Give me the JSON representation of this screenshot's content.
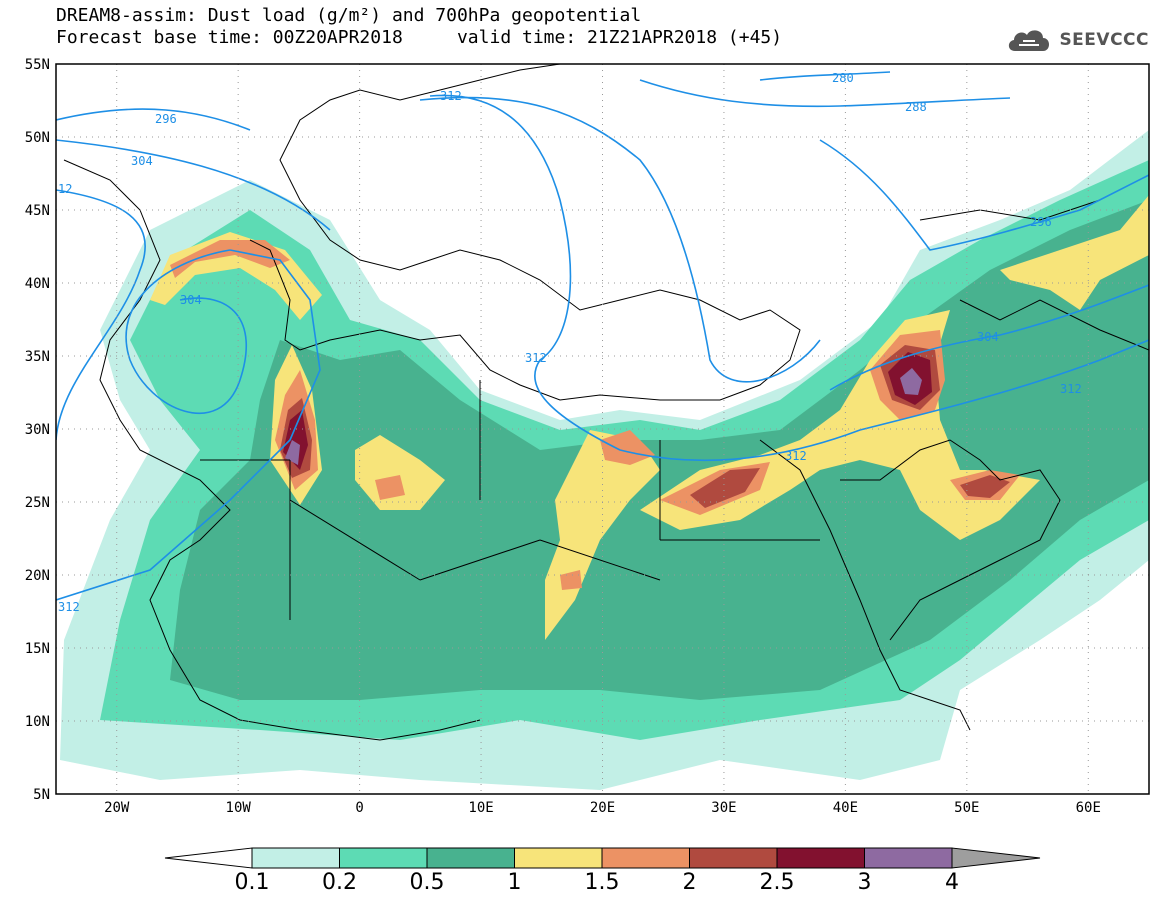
{
  "title": {
    "line1": "DREAM8-assim: Dust load (g/m²) and 700hPa geopotential",
    "line2": "Forecast base time: 00Z20APR2018     valid time: 21Z21APR2018 (+45)"
  },
  "logo": {
    "text": "SEEVCCC",
    "icon": "cloud-icon"
  },
  "map": {
    "lat_range": [
      5,
      55
    ],
    "lon_range": [
      -25,
      65
    ],
    "lat_ticks": [
      "5N",
      "10N",
      "15N",
      "20N",
      "25N",
      "30N",
      "35N",
      "40N",
      "45N",
      "50N",
      "55N"
    ],
    "lon_ticks": [
      "20W",
      "10W",
      "0",
      "10E",
      "20E",
      "30E",
      "40E",
      "50E",
      "60E"
    ],
    "grid": "dotted",
    "contour_color": "#1e8fe6",
    "contour_labels": [
      "280",
      "288",
      "296",
      "304",
      "312",
      "312",
      "304",
      "296",
      "312",
      "12",
      "312",
      "304",
      "296",
      "312"
    ]
  },
  "colorbar": {
    "ticks": [
      "0.1",
      "0.2",
      "0.5",
      "1",
      "1.5",
      "2",
      "2.5",
      "3",
      "4"
    ],
    "colors": [
      "#c2efe6",
      "#5ddbb4",
      "#48b28f",
      "#f7e47a",
      "#ec9264",
      "#b04a3f",
      "#82112f",
      "#8e6aa1"
    ],
    "under_color": "#ffffff",
    "over_color": "#9e9e9e"
  }
}
